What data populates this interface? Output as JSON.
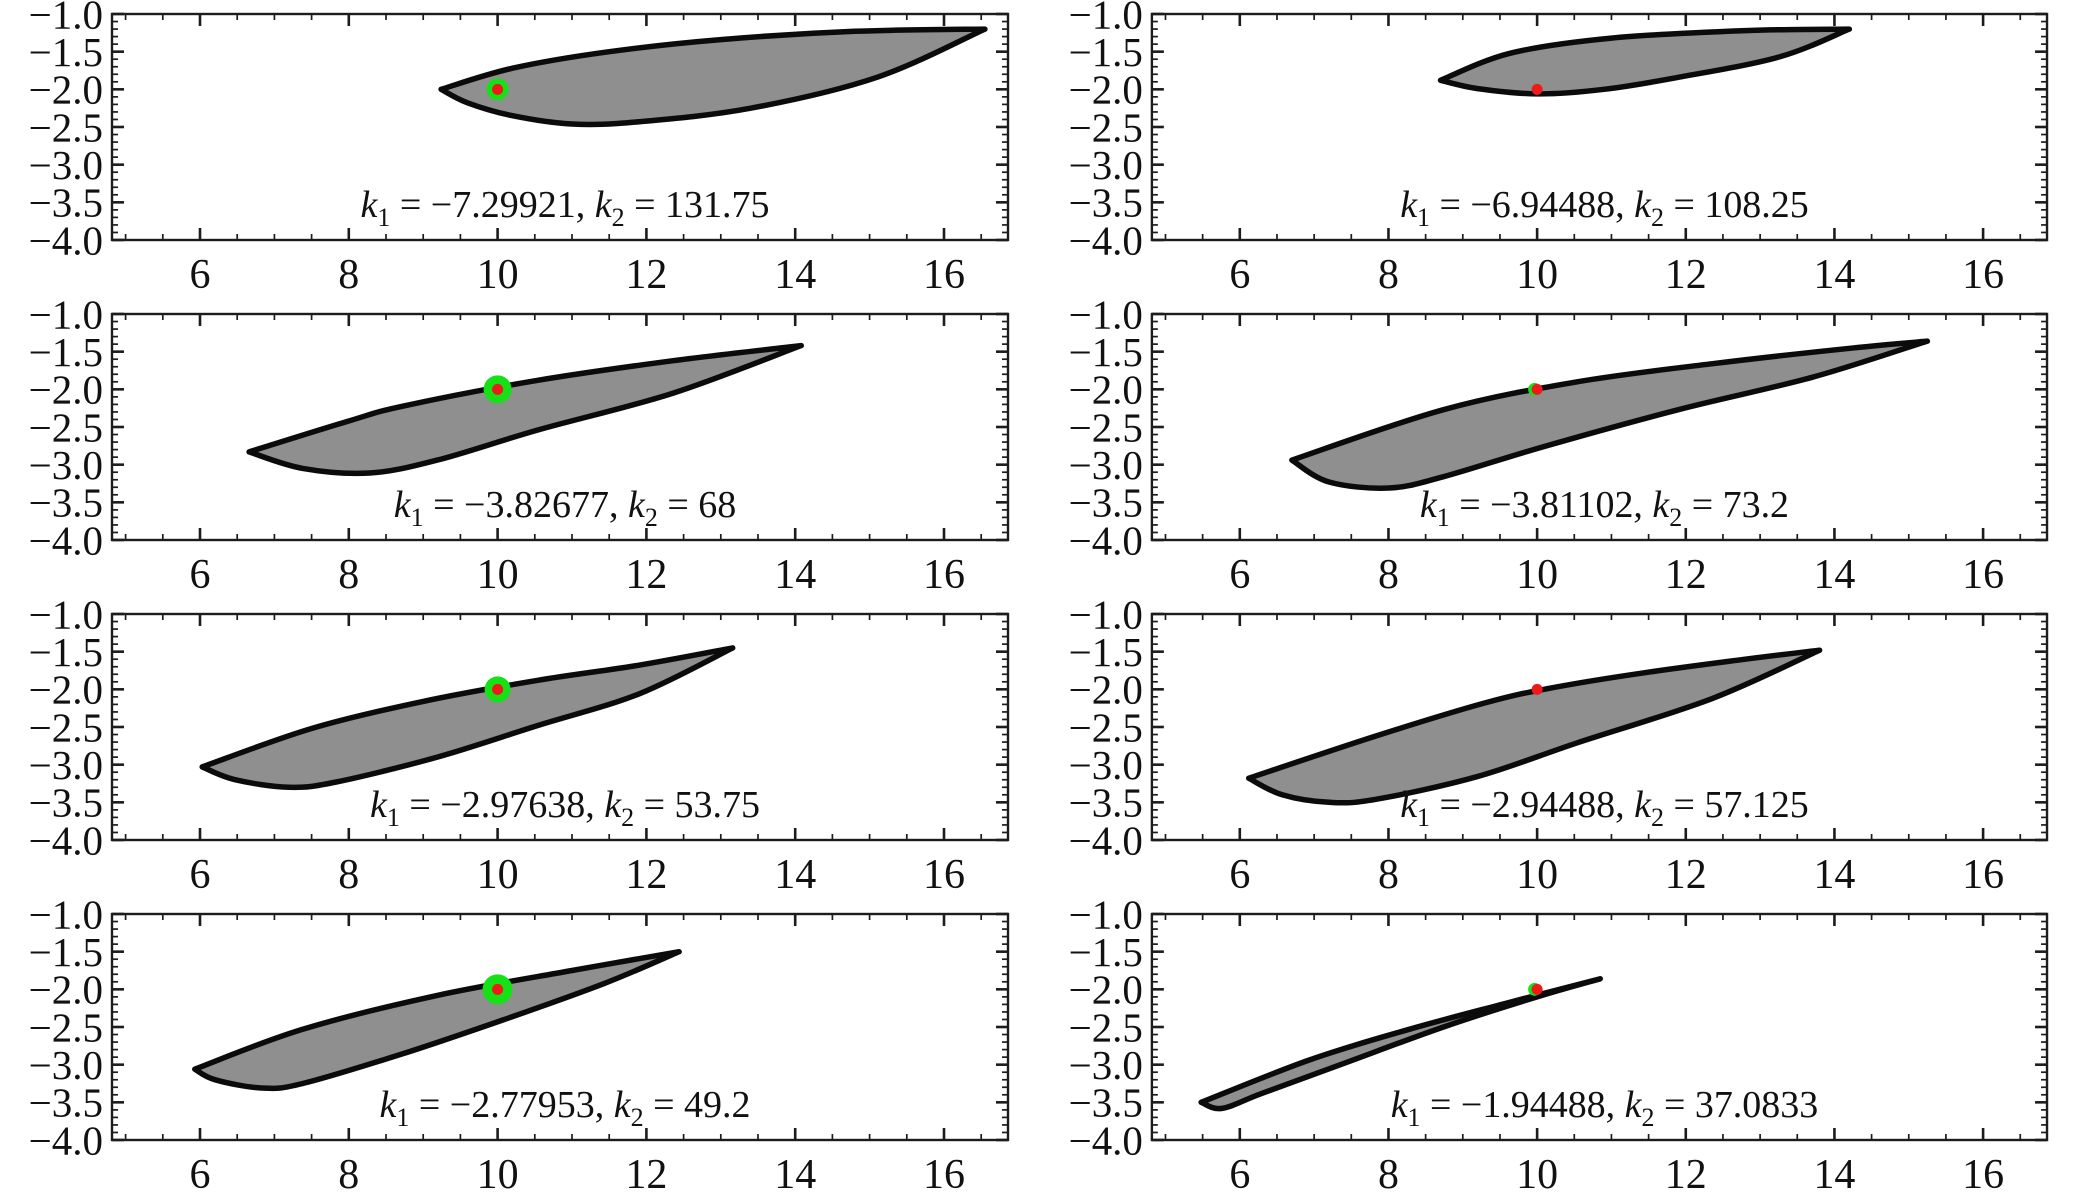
{
  "figure": {
    "description_visible_text_only": true,
    "rows": 4,
    "cols": 2
  },
  "chart_data": {
    "type": "area",
    "layout": {
      "rows": 4,
      "cols": 2
    },
    "style": {
      "background": "#ffffff",
      "shape_fill": "#8f8f8f",
      "shape_stroke": "#0b0b0b",
      "shape_stroke_width": 5.5,
      "marker_green": "#16e016",
      "marker_red": "#ee1a1a",
      "marker_red_r": 5.5,
      "axis_color": "#1c1c1c",
      "frame_stroke_width": 2.4
    },
    "axes": {
      "x_ticks": [
        6,
        8,
        10,
        12,
        14,
        16
      ],
      "x_minor_step": 0.5,
      "y_ticks": [
        -1.0,
        -1.5,
        -2.0,
        -2.5,
        -3.0,
        -3.5,
        -4.0
      ],
      "y_tick_labels": [
        "−1.0",
        "−1.5",
        "−2.0",
        "−2.5",
        "−3.0",
        "−3.5",
        "−4.0"
      ],
      "y_minor_step": 0.1,
      "x_range": [
        4.82,
        16.86
      ],
      "y_range": [
        -4.0,
        -1.0
      ],
      "grid": false,
      "ticks_on_all_four_edges": true
    },
    "marker_point": {
      "x": 10,
      "y": -2
    },
    "panels": [
      {
        "k1": -7.29921,
        "k2": 131.75,
        "label_parts": [
          "k",
          "1",
          " = −7.29921, ",
          "k",
          "2",
          " = 131.75"
        ],
        "marker": {
          "style": "green-ring",
          "green_r": 11
        },
        "shape": {
          "upper": [
            [
              9.24,
              -2.0
            ],
            [
              10.2,
              -1.72
            ],
            [
              11.5,
              -1.5
            ],
            [
              13.0,
              -1.34
            ],
            [
              14.8,
              -1.23
            ],
            [
              16.55,
              -1.2
            ]
          ],
          "lower": [
            [
              16.55,
              -1.2
            ],
            [
              15.1,
              -1.84
            ],
            [
              13.4,
              -2.25
            ],
            [
              11.9,
              -2.43
            ],
            [
              11.0,
              -2.46
            ],
            [
              10.2,
              -2.35
            ],
            [
              9.6,
              -2.18
            ],
            [
              9.24,
              -2.0
            ]
          ]
        }
      },
      {
        "k1": -6.94488,
        "k2": 108.25,
        "label_parts": [
          "k",
          "1",
          " = −6.94488, ",
          "k",
          "2",
          " = 108.25"
        ],
        "marker": {
          "style": "red-dot",
          "green_r": 0
        },
        "shape": {
          "upper": [
            [
              8.7,
              -1.88
            ],
            [
              9.64,
              -1.52
            ],
            [
              11.0,
              -1.32
            ],
            [
              12.8,
              -1.22
            ],
            [
              14.2,
              -1.2
            ]
          ],
          "lower": [
            [
              14.2,
              -1.2
            ],
            [
              13.26,
              -1.57
            ],
            [
              11.9,
              -1.84
            ],
            [
              10.9,
              -2.0
            ],
            [
              10.0,
              -2.06
            ],
            [
              9.2,
              -1.99
            ],
            [
              8.7,
              -1.88
            ]
          ]
        }
      },
      {
        "k1": -3.82677,
        "k2": 68,
        "label_parts": [
          "k",
          "1",
          " = −3.82677, ",
          "k",
          "2",
          " = 68"
        ],
        "marker": {
          "style": "green-ring",
          "green_r": 14
        },
        "shape": {
          "upper": [
            [
              6.66,
              -2.83
            ],
            [
              8.0,
              -2.42
            ],
            [
              8.74,
              -2.22
            ],
            [
              10.54,
              -1.88
            ],
            [
              12.36,
              -1.62
            ],
            [
              14.08,
              -1.42
            ]
          ],
          "lower": [
            [
              14.08,
              -1.42
            ],
            [
              12.36,
              -2.05
            ],
            [
              10.54,
              -2.54
            ],
            [
              9.19,
              -2.94
            ],
            [
              8.28,
              -3.11
            ],
            [
              7.38,
              -3.05
            ],
            [
              6.66,
              -2.83
            ]
          ]
        }
      },
      {
        "k1": -3.81102,
        "k2": 73.2,
        "label_parts": [
          "k",
          "1",
          " = −3.81102, ",
          "k",
          "2",
          " = 73.2"
        ],
        "marker": {
          "style": "red-dot-sliver",
          "green_r": 6.5
        },
        "shape": {
          "upper": [
            [
              6.7,
              -2.94
            ],
            [
              8.74,
              -2.27
            ],
            [
              10.54,
              -1.9
            ],
            [
              12.36,
              -1.66
            ],
            [
              14.16,
              -1.46
            ],
            [
              15.25,
              -1.36
            ]
          ],
          "lower": [
            [
              15.25,
              -1.36
            ],
            [
              13.7,
              -1.84
            ],
            [
              11.9,
              -2.27
            ],
            [
              10.09,
              -2.76
            ],
            [
              8.74,
              -3.16
            ],
            [
              8.01,
              -3.31
            ],
            [
              7.2,
              -3.23
            ],
            [
              6.7,
              -2.94
            ]
          ]
        }
      },
      {
        "k1": -2.97638,
        "k2": 53.75,
        "label_parts": [
          "k",
          "1",
          " = −2.97638, ",
          "k",
          "2",
          " = 53.75"
        ],
        "marker": {
          "style": "green-ring",
          "green_r": 13
        },
        "shape": {
          "upper": [
            [
              6.03,
              -3.03
            ],
            [
              7.5,
              -2.52
            ],
            [
              9.0,
              -2.16
            ],
            [
              10.54,
              -1.88
            ],
            [
              11.9,
              -1.68
            ],
            [
              13.16,
              -1.45
            ]
          ],
          "lower": [
            [
              13.16,
              -1.45
            ],
            [
              11.9,
              -2.06
            ],
            [
              10.54,
              -2.48
            ],
            [
              9.19,
              -2.9
            ],
            [
              7.83,
              -3.23
            ],
            [
              7.2,
              -3.3
            ],
            [
              6.47,
              -3.2
            ],
            [
              6.03,
              -3.03
            ]
          ]
        }
      },
      {
        "k1": -2.94488,
        "k2": 57.125,
        "label_parts": [
          "k",
          "1",
          " = −2.94488, ",
          "k",
          "2",
          " = 57.125"
        ],
        "marker": {
          "style": "red-dot",
          "green_r": 0
        },
        "shape": {
          "upper": [
            [
              6.12,
              -3.18
            ],
            [
              7.83,
              -2.62
            ],
            [
              9.3,
              -2.18
            ],
            [
              10.2,
              -1.98
            ],
            [
              11.44,
              -1.78
            ],
            [
              12.8,
              -1.6
            ],
            [
              13.8,
              -1.48
            ]
          ],
          "lower": [
            [
              13.8,
              -1.48
            ],
            [
              12.36,
              -2.12
            ],
            [
              10.54,
              -2.71
            ],
            [
              9.19,
              -3.16
            ],
            [
              7.83,
              -3.46
            ],
            [
              7.2,
              -3.5
            ],
            [
              6.57,
              -3.4
            ],
            [
              6.12,
              -3.18
            ]
          ]
        }
      },
      {
        "k1": -2.77953,
        "k2": 49.2,
        "label_parts": [
          "k",
          "1",
          " = −2.77953, ",
          "k",
          "2",
          " = 49.2"
        ],
        "marker": {
          "style": "green-ring",
          "green_r": 15
        },
        "shape": {
          "upper": [
            [
              5.93,
              -3.06
            ],
            [
              7.38,
              -2.53
            ],
            [
              9.19,
              -2.08
            ],
            [
              11.0,
              -1.75
            ],
            [
              12.44,
              -1.5
            ]
          ],
          "lower": [
            [
              12.44,
              -1.5
            ],
            [
              11.44,
              -1.92
            ],
            [
              10.09,
              -2.4
            ],
            [
              8.74,
              -2.85
            ],
            [
              7.38,
              -3.25
            ],
            [
              6.83,
              -3.31
            ],
            [
              6.2,
              -3.2
            ],
            [
              5.93,
              -3.06
            ]
          ]
        }
      },
      {
        "k1": -1.94488,
        "k2": 37.0833,
        "label_parts": [
          "k",
          "1",
          " = −1.94488, ",
          "k",
          "2",
          " = 37.0833"
        ],
        "marker": {
          "style": "red-dot-sliver",
          "green_r": 6.5
        },
        "shape": {
          "upper": [
            [
              5.48,
              -3.5
            ],
            [
              6.93,
              -2.94
            ],
            [
              8.28,
              -2.53
            ],
            [
              9.64,
              -2.17
            ],
            [
              10.85,
              -1.86
            ]
          ],
          "lower": [
            [
              10.85,
              -1.86
            ],
            [
              10.0,
              -2.1
            ],
            [
              8.74,
              -2.5
            ],
            [
              7.38,
              -2.99
            ],
            [
              6.3,
              -3.38
            ],
            [
              5.76,
              -3.58
            ],
            [
              5.48,
              -3.5
            ]
          ]
        }
      }
    ]
  }
}
